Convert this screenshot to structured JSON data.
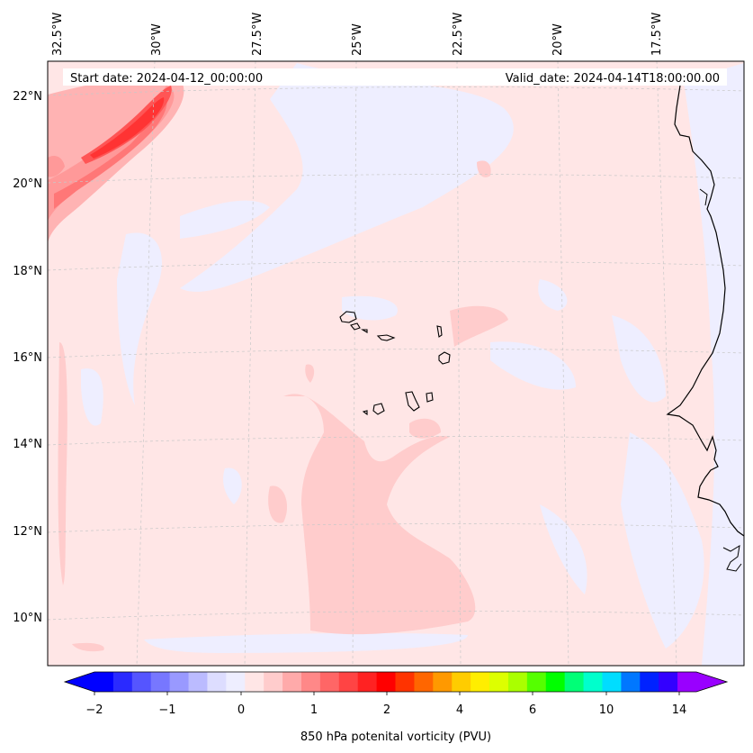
{
  "map": {
    "start_date": "Start date: 2024-04-12_00:00:00",
    "valid_date": "Valid_date: 2024-04-14T18:00:00.00",
    "lon_labels": [
      "32.5°W",
      "30°W",
      "27.5°W",
      "25°W",
      "22.5°W",
      "20°W",
      "17.5°W"
    ],
    "lat_labels": [
      "22°N",
      "20°N",
      "18°N",
      "16°N",
      "14°N",
      "12°N",
      "10°N"
    ],
    "colors": {
      "background_field": "#ffe6e6",
      "light_negative": "#eeeeff",
      "light_positive": "#ffcccc",
      "medium_positive": "#ff9999",
      "strong_positive": "#ff4d4d",
      "coastline": "#000000",
      "gridline": "#c8c8c8"
    }
  },
  "colorbar": {
    "label": "850 hPa potenital vorticity (PVU)",
    "tick_labels": [
      "−2",
      "−1",
      "0",
      "1",
      "2",
      "4",
      "6",
      "10",
      "14"
    ],
    "colors": [
      "#0000ff",
      "#2a2aff",
      "#5555ff",
      "#7777ff",
      "#9999ff",
      "#bbbbff",
      "#ddddff",
      "#eeeeff",
      "#ffe6e6",
      "#ffcccc",
      "#ffaaaa",
      "#ff8888",
      "#ff6666",
      "#ff4444",
      "#ff2222",
      "#ff0000",
      "#ff3300",
      "#ff6600",
      "#ff9900",
      "#ffcc00",
      "#ffee00",
      "#ddff00",
      "#aaff00",
      "#55ff00",
      "#00ff00",
      "#00ff77",
      "#00ffcc",
      "#00ddff",
      "#0077ff",
      "#0022ff",
      "#3300ff",
      "#9900ff"
    ]
  }
}
